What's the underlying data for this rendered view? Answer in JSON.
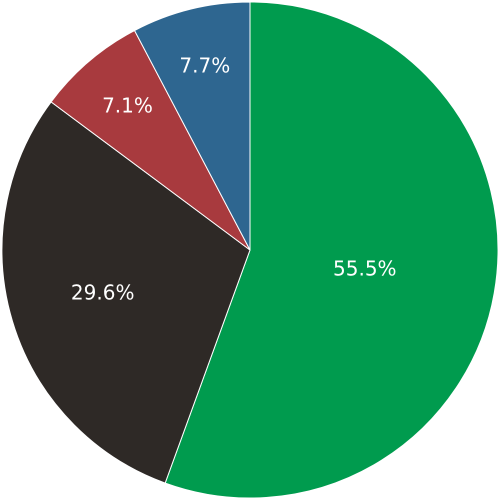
{
  "chart_data": {
    "type": "pie",
    "values": [
      55.5,
      29.6,
      7.1,
      7.7
    ],
    "value_labels": [
      "55.5%",
      "29.6%",
      "7.1%",
      "7.7%"
    ],
    "colors": [
      "#009b4e",
      "#2e2926",
      "#a83a3e",
      "#2e6690"
    ]
  }
}
